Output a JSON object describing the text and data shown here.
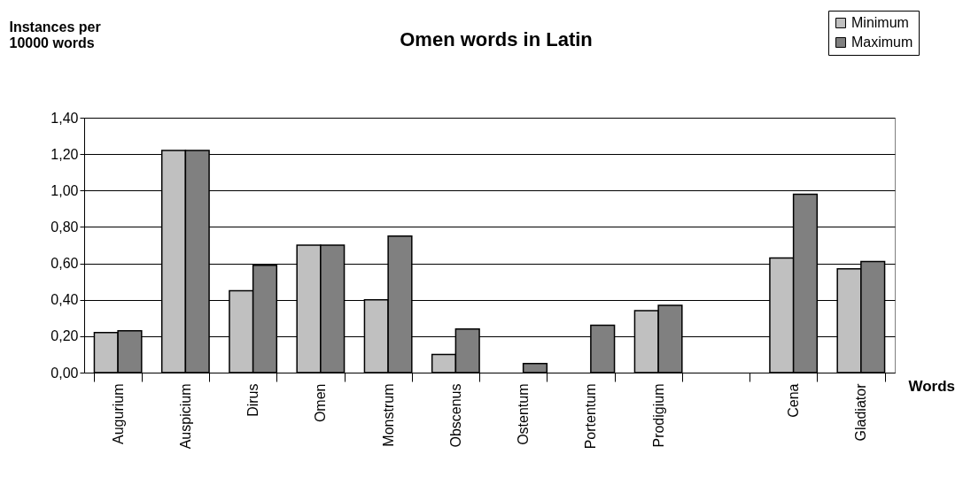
{
  "chart_data": {
    "type": "bar",
    "title": "Omen words in Latin",
    "ylabel": "Instances per 10000 words",
    "xlabel": "Words",
    "categories": [
      "Augurium",
      "Auspicium",
      "Dirus",
      "Omen",
      "Monstrum",
      "Obscenus",
      "Ostentum",
      "Portentum",
      "Prodigium",
      null,
      "Cena",
      "Gladiator"
    ],
    "series": [
      {
        "name": "Minimum",
        "color": "#c0c0c0",
        "values": [
          0.22,
          1.22,
          0.45,
          0.7,
          0.4,
          0.1,
          null,
          null,
          0.34,
          null,
          0.63,
          0.57
        ]
      },
      {
        "name": "Maximum",
        "color": "#808080",
        "values": [
          0.23,
          1.22,
          0.59,
          0.7,
          0.75,
          0.24,
          0.05,
          0.26,
          0.37,
          null,
          0.98,
          0.61
        ]
      }
    ],
    "ylim": [
      0,
      1.4
    ],
    "yticks": [
      {
        "value": 0,
        "label": "0,00"
      },
      {
        "value": 0.2,
        "label": "0,20"
      },
      {
        "value": 0.4,
        "label": "0,40"
      },
      {
        "value": 0.6,
        "label": "0,60"
      },
      {
        "value": 0.8,
        "label": "0,80"
      },
      {
        "value": 1.0,
        "label": "1,00"
      },
      {
        "value": 1.2,
        "label": "1,20"
      },
      {
        "value": 1.4,
        "label": "1,40"
      }
    ],
    "grid": "y",
    "legend": "top right"
  }
}
